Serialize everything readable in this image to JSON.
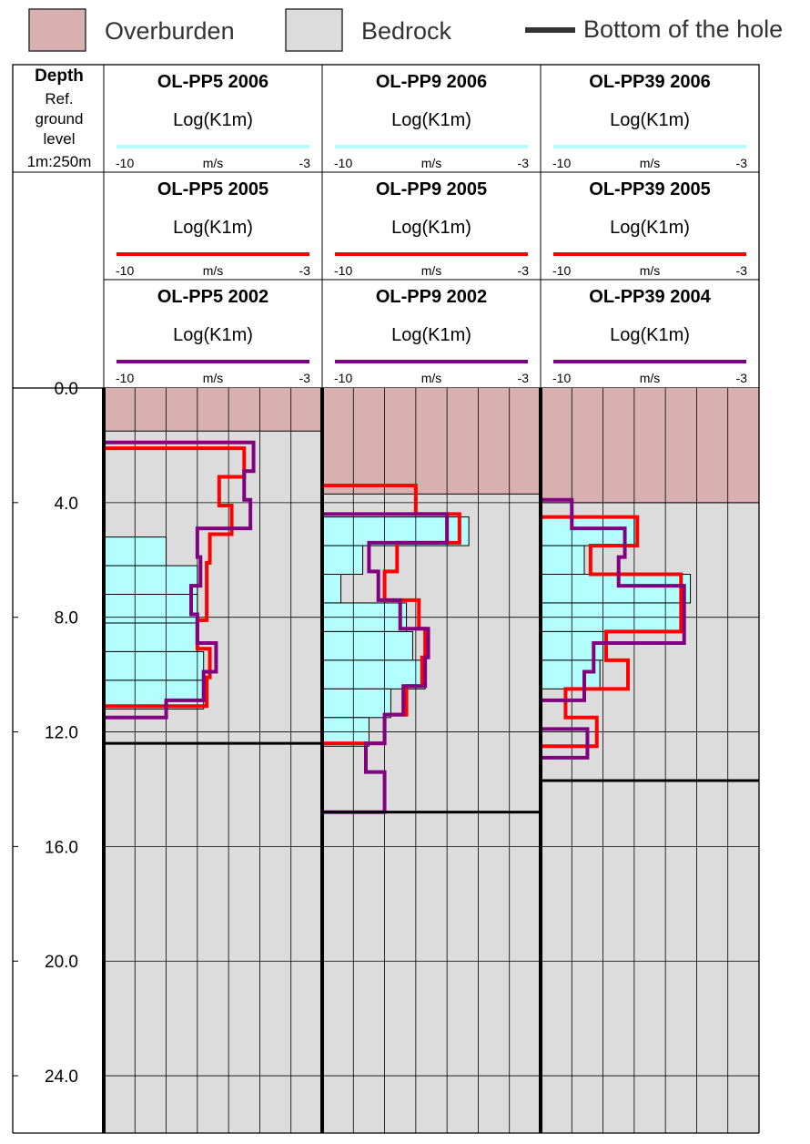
{
  "legend": {
    "overburden": {
      "label": "Overburden",
      "color": "#d8b0b0"
    },
    "bedrock": {
      "label": "Bedrock",
      "color": "#dcdcdc"
    },
    "bottom": {
      "label": "Bottom of the hole",
      "color": "#333333"
    }
  },
  "depth_header": {
    "title": "Depth",
    "line2": "Ref.",
    "line3": "ground",
    "line4": "level",
    "scale": "1m:250m"
  },
  "colors": {
    "flow_2006": "#b3ffff",
    "flow_2005": "#ff0000",
    "flow_2002": "#800080",
    "overburden": "#d8b0b0",
    "bedrock": "#dcdcdc"
  },
  "chart_data": {
    "type": "step-profile",
    "y_axis": {
      "label": "Depth",
      "unit": "m",
      "range": [
        0,
        26
      ],
      "ticks": [
        "0.0",
        "4.0",
        "8.0",
        "12.0",
        "16.0",
        "20.0",
        "24.0"
      ],
      "tick_values": [
        0,
        4,
        8,
        12,
        16,
        20,
        24
      ]
    },
    "x_axis": {
      "label": "m/s",
      "min_label": "-10",
      "max_label": "-3",
      "range": [
        -10,
        -3
      ]
    },
    "boreholes": [
      {
        "overburden_bottom": 1.5,
        "hole_bottom": 12.4,
        "headers": [
          {
            "title": "OL-PP5 2006",
            "param": "Log(K1m)",
            "unit": "m/s",
            "min": "-10",
            "max": "-3"
          },
          {
            "title": "OL-PP5 2005",
            "param": "Log(K1m)",
            "unit": "m/s",
            "min": "-10",
            "max": "-3"
          },
          {
            "title": "OL-PP5 2002",
            "param": "Log(K1m)",
            "unit": "m/s",
            "min": "-10",
            "max": "-3"
          }
        ],
        "series": [
          {
            "name": "OL-PP5 2006",
            "kind": "bars",
            "intervals": [
              [
                5.2,
                6.2,
                -8.0
              ],
              [
                6.2,
                7.2,
                -7.0
              ],
              [
                7.2,
                8.2,
                -7.0
              ],
              [
                8.2,
                9.2,
                -7.0
              ],
              [
                9.2,
                10.2,
                -6.8
              ],
              [
                10.2,
                11.2,
                -6.8
              ]
            ]
          },
          {
            "name": "OL-PP5 2005",
            "kind": "step",
            "intervals": [
              [
                2.1,
                3.1,
                -5.5
              ],
              [
                3.1,
                4.1,
                -6.3
              ],
              [
                4.1,
                5.1,
                -5.9
              ],
              [
                5.1,
                6.1,
                -6.6
              ],
              [
                6.1,
                7.1,
                -6.7
              ],
              [
                7.1,
                8.1,
                -6.7
              ],
              [
                8.1,
                9.1,
                -7.0
              ],
              [
                9.1,
                10.1,
                -6.6
              ],
              [
                10.1,
                11.1,
                -6.7
              ]
            ]
          },
          {
            "name": "OL-PP5 2002",
            "kind": "step",
            "intervals": [
              [
                1.1,
                1.9,
                -10.0
              ],
              [
                1.9,
                2.9,
                -5.2
              ],
              [
                2.9,
                3.9,
                -5.5
              ],
              [
                3.9,
                4.9,
                -5.3
              ],
              [
                4.9,
                5.9,
                -7.0
              ],
              [
                5.9,
                6.9,
                -6.9
              ],
              [
                6.9,
                7.9,
                -7.2
              ],
              [
                7.9,
                8.9,
                -7.0
              ],
              [
                8.9,
                9.9,
                -6.4
              ],
              [
                9.9,
                10.9,
                -6.8
              ],
              [
                10.9,
                11.5,
                -8.0
              ],
              [
                11.5,
                12.5,
                -10.0
              ]
            ]
          }
        ]
      },
      {
        "overburden_bottom": 3.7,
        "hole_bottom": 14.8,
        "headers": [
          {
            "title": "OL-PP9 2006",
            "param": "Log(K1m)",
            "unit": "m/s",
            "min": "-10",
            "max": "-3"
          },
          {
            "title": "OL-PP9 2005",
            "param": "Log(K1m)",
            "unit": "m/s",
            "min": "-10",
            "max": "-3"
          },
          {
            "title": "OL-PP9 2002",
            "param": "Log(K1m)",
            "unit": "m/s",
            "min": "-10",
            "max": "-3"
          }
        ],
        "series": [
          {
            "name": "OL-PP9 2006",
            "kind": "bars",
            "intervals": [
              [
                4.5,
                5.5,
                -5.3
              ],
              [
                5.5,
                6.5,
                -8.7
              ],
              [
                6.5,
                7.5,
                -9.4
              ],
              [
                7.5,
                8.5,
                -7.3
              ],
              [
                8.5,
                9.5,
                -7.1
              ],
              [
                9.5,
                10.5,
                -6.7
              ],
              [
                10.5,
                11.5,
                -7.8
              ],
              [
                11.5,
                12.5,
                -8.5
              ]
            ]
          },
          {
            "name": "OL-PP9 2005",
            "kind": "step",
            "intervals": [
              [
                3.4,
                4.4,
                -7.0
              ],
              [
                4.4,
                5.4,
                -5.6
              ],
              [
                5.4,
                6.4,
                -7.6
              ],
              [
                6.4,
                7.4,
                -8.0
              ],
              [
                7.4,
                8.4,
                -6.9
              ],
              [
                8.4,
                9.4,
                -6.7
              ],
              [
                9.4,
                10.4,
                -6.8
              ],
              [
                10.4,
                11.4,
                -7.3
              ],
              [
                11.4,
                12.4,
                -8.0
              ],
              [
                12.4,
                13.4,
                -10.0
              ]
            ]
          },
          {
            "name": "OL-PP9 2002",
            "kind": "step",
            "intervals": [
              [
                3.2,
                4.4,
                -10.0
              ],
              [
                4.4,
                5.4,
                -6.0
              ],
              [
                5.4,
                6.4,
                -8.5
              ],
              [
                6.4,
                7.4,
                -8.2
              ],
              [
                7.4,
                8.4,
                -7.5
              ],
              [
                8.4,
                9.4,
                -6.6
              ],
              [
                9.4,
                10.4,
                -6.7
              ],
              [
                10.4,
                11.4,
                -7.4
              ],
              [
                11.4,
                12.4,
                -8.0
              ],
              [
                12.4,
                13.4,
                -8.6
              ],
              [
                13.4,
                14.8,
                -8.0
              ]
            ]
          }
        ]
      },
      {
        "overburden_bottom": 4.0,
        "hole_bottom": 13.7,
        "headers": [
          {
            "title": "OL-PP39 2006",
            "param": "Log(K1m)",
            "unit": "m/s",
            "min": "-10",
            "max": "-3"
          },
          {
            "title": "OL-PP39 2005",
            "param": "Log(K1m)",
            "unit": "m/s",
            "min": "-10",
            "max": "-3"
          },
          {
            "title": "OL-PP39 2004",
            "param": "Log(K1m)",
            "unit": "m/s",
            "min": "-10",
            "max": "-3"
          }
        ],
        "series": [
          {
            "name": "OL-PP39 2006",
            "kind": "bars",
            "intervals": [
              [
                4.5,
                5.5,
                -7.0
              ],
              [
                5.5,
                6.5,
                -8.6
              ],
              [
                6.5,
                7.5,
                -5.2
              ],
              [
                7.5,
                8.5,
                -5.4
              ],
              [
                8.5,
                9.5,
                -8.0
              ],
              [
                9.5,
                10.5,
                -8.1
              ]
            ]
          },
          {
            "name": "OL-PP39 2005",
            "kind": "step",
            "intervals": [
              [
                4.5,
                5.5,
                -6.9
              ],
              [
                5.5,
                6.5,
                -8.4
              ],
              [
                6.5,
                7.5,
                -5.5
              ],
              [
                7.5,
                8.5,
                -5.5
              ],
              [
                8.5,
                9.5,
                -7.9
              ],
              [
                9.5,
                10.5,
                -7.2
              ],
              [
                10.5,
                11.5,
                -9.2
              ],
              [
                11.5,
                12.5,
                -8.2
              ]
            ]
          },
          {
            "name": "OL-PP39 2004",
            "kind": "step",
            "intervals": [
              [
                2.8,
                3.9,
                -10.0
              ],
              [
                3.9,
                4.9,
                -9.0
              ],
              [
                4.9,
                5.9,
                -7.3
              ],
              [
                5.9,
                6.9,
                -7.5
              ],
              [
                6.9,
                7.9,
                -5.4
              ],
              [
                7.9,
                8.9,
                -5.4
              ],
              [
                8.9,
                9.9,
                -8.3
              ],
              [
                9.9,
                10.9,
                -8.6
              ],
              [
                10.9,
                11.9,
                -10.0
              ],
              [
                11.9,
                12.9,
                -8.5
              ],
              [
                12.9,
                13.7,
                -10.0
              ]
            ]
          }
        ]
      }
    ]
  }
}
